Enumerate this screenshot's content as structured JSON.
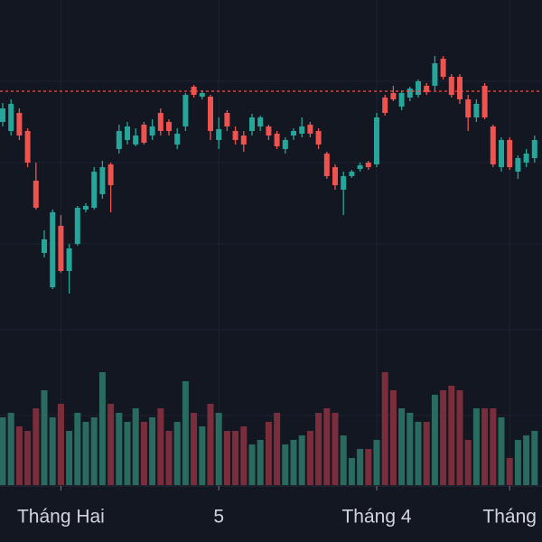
{
  "chart_data": {
    "type": "candlestick",
    "categories": [
      null,
      null,
      null,
      null,
      null,
      null,
      null,
      "Tháng Hai",
      null,
      null,
      null,
      null,
      null,
      null,
      null,
      null,
      null,
      null,
      null,
      null,
      null,
      null,
      null,
      null,
      null,
      null,
      "5",
      null,
      null,
      null,
      null,
      null,
      null,
      null,
      null,
      null,
      null,
      null,
      null,
      null,
      null,
      null,
      null,
      null,
      null,
      "Tháng 4",
      null,
      null,
      null,
      null,
      null,
      null,
      null,
      null,
      null,
      null,
      null,
      null,
      null,
      null,
      null,
      "Tháng",
      null,
      null,
      null
    ],
    "open": [
      465,
      455,
      475,
      455,
      400,
      320,
      282,
      350,
      300,
      330,
      368,
      370,
      385,
      418,
      435,
      445,
      440,
      462,
      450,
      475,
      465,
      440,
      460,
      504,
      493,
      493,
      445,
      475,
      455,
      450,
      455,
      460,
      460,
      452,
      435,
      450,
      452,
      462,
      455,
      430,
      415,
      390,
      405,
      413,
      420,
      418,
      492,
      497,
      482,
      492,
      495,
      505,
      505,
      535,
      515,
      515,
      490,
      470,
      505,
      460,
      415,
      445,
      410,
      420,
      425
    ],
    "high": [
      486,
      490,
      480,
      458,
      420,
      345,
      368,
      362,
      330,
      372,
      375,
      415,
      422,
      420,
      462,
      465,
      458,
      465,
      468,
      480,
      468,
      458,
      497,
      506,
      500,
      495,
      470,
      478,
      460,
      455,
      474,
      472,
      462,
      455,
      448,
      458,
      470,
      465,
      458,
      432,
      418,
      410,
      412,
      420,
      422,
      475,
      495,
      505,
      500,
      504,
      512,
      508,
      538,
      538,
      518,
      518,
      495,
      490,
      508,
      462,
      448,
      448,
      428,
      435,
      450
    ],
    "low": [
      460,
      450,
      445,
      415,
      368,
      315,
      280,
      298,
      275,
      328,
      365,
      368,
      380,
      365,
      430,
      440,
      438,
      440,
      445,
      450,
      450,
      435,
      455,
      492,
      490,
      445,
      435,
      455,
      440,
      432,
      450,
      455,
      445,
      435,
      430,
      445,
      448,
      448,
      435,
      402,
      390,
      362,
      403,
      410,
      412,
      415,
      472,
      488,
      478,
      488,
      492,
      495,
      500,
      512,
      492,
      485,
      455,
      465,
      468,
      415,
      410,
      412,
      402,
      415,
      420
    ],
    "close": [
      480,
      485,
      450,
      420,
      370,
      335,
      365,
      300,
      325,
      370,
      372,
      410,
      415,
      395,
      455,
      460,
      450,
      442,
      460,
      455,
      455,
      452,
      495,
      495,
      497,
      455,
      457,
      460,
      445,
      440,
      470,
      470,
      450,
      438,
      445,
      455,
      460,
      452,
      440,
      405,
      395,
      405,
      410,
      417,
      415,
      470,
      475,
      490,
      497,
      502,
      510,
      498,
      530,
      515,
      495,
      490,
      470,
      485,
      470,
      418,
      445,
      415,
      425,
      430,
      445
    ],
    "volume": [
      75,
      80,
      65,
      60,
      85,
      105,
      75,
      90,
      60,
      80,
      70,
      75,
      125,
      90,
      80,
      70,
      85,
      70,
      75,
      85,
      60,
      70,
      115,
      80,
      65,
      90,
      80,
      60,
      60,
      65,
      45,
      50,
      70,
      80,
      45,
      50,
      55,
      60,
      80,
      85,
      80,
      55,
      30,
      40,
      40,
      50,
      125,
      105,
      85,
      80,
      70,
      70,
      100,
      105,
      110,
      105,
      50,
      85,
      85,
      85,
      75,
      30,
      50,
      55,
      60
    ],
    "up_color": "#26a69a",
    "down_color": "#ef5350",
    "volume_up_color": "#2a6b5f",
    "volume_down_color": "#7a2e3b",
    "ylim": [
      0,
      600
    ],
    "hgrid": [
      510,
      420,
      330,
      235,
      140
    ],
    "price_line": 499,
    "price_line_color": "#ef5350",
    "grid": true
  }
}
